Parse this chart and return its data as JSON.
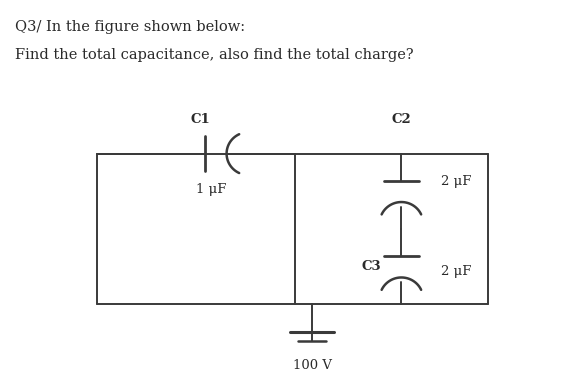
{
  "title_line1": "Q3/ In the figure shown below:",
  "title_line2": "Find the total capacitance, also find the total charge?",
  "background_color": "#ffffff",
  "line_color": "#3a3a3a",
  "text_color": "#2a2a2a",
  "C1_label": "C1",
  "C1_value": "1 μF",
  "C2_label": "C2",
  "C2_value": "2 μF",
  "C3_label": "C3",
  "C3_value": "2 μF",
  "battery_label": "100 V",
  "font_size_title": 10.5,
  "font_size_label": 9.5
}
